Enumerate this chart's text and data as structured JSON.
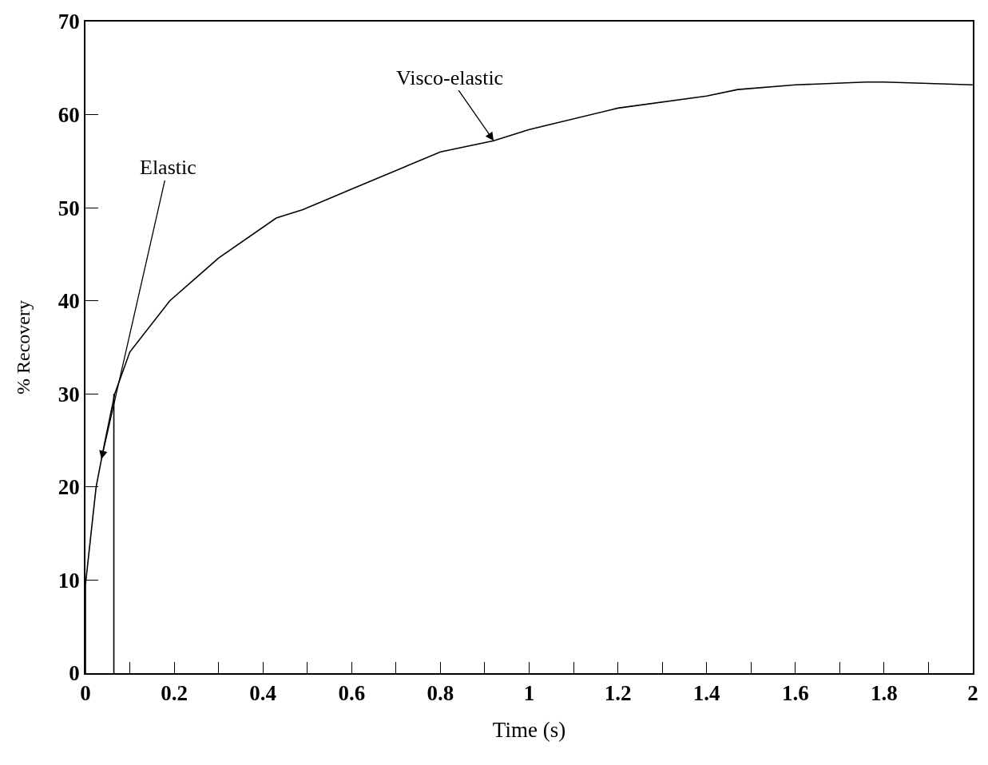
{
  "chart_data": {
    "type": "line",
    "xlabel": "Time (s)",
    "ylabel": "% Recovery",
    "xlim": [
      0,
      2
    ],
    "ylim": [
      0,
      70
    ],
    "xticks": [
      0,
      {
        "value": 0.1,
        "label": null
      },
      0.2,
      {
        "value": 0.3,
        "label": null
      },
      0.4,
      {
        "value": 0.5,
        "label": null
      },
      0.6,
      {
        "value": 0.7,
        "label": null
      },
      0.8,
      {
        "value": 0.9,
        "label": null
      },
      1,
      {
        "value": 1.1,
        "label": null
      },
      1.2,
      {
        "value": 1.3,
        "label": null
      },
      1.4,
      {
        "value": 1.5,
        "label": null
      },
      1.6,
      {
        "value": 1.7,
        "label": null
      },
      1.8,
      {
        "value": 1.9,
        "label": null
      },
      2
    ],
    "yticks": [
      0,
      10,
      20,
      30,
      40,
      50,
      60,
      70
    ],
    "grid": false,
    "marker": "none",
    "line_style": "solid",
    "series": [
      {
        "color": "#000000",
        "x": [
          0,
          0,
          0.016,
          0.024,
          0.043,
          0.066,
          0.1,
          0.19,
          0.3,
          0.43,
          0.49,
          0.55,
          0.6,
          0.8,
          0.92,
          1,
          1.2,
          1.4,
          1.47,
          1.6,
          1.76,
          1.8,
          2
        ],
        "values": [
          0,
          9.5,
          16.5,
          20,
          24.7,
          30,
          34.5,
          40,
          44.6,
          48.9,
          49.8,
          51,
          52,
          56,
          57.2,
          58.4,
          60.7,
          62,
          62.7,
          63.2,
          63.5,
          63.5,
          63.2
        ]
      },
      {
        "color": "#000000",
        "x": [
          0.064,
          0.064
        ],
        "values": [
          0,
          30
        ]
      }
    ],
    "annotations": [
      {
        "text": "Elastic",
        "x": 0.036,
        "y": 23
      },
      {
        "text": "Visco-elastic",
        "x": 0.92,
        "y": 57.2
      }
    ]
  }
}
